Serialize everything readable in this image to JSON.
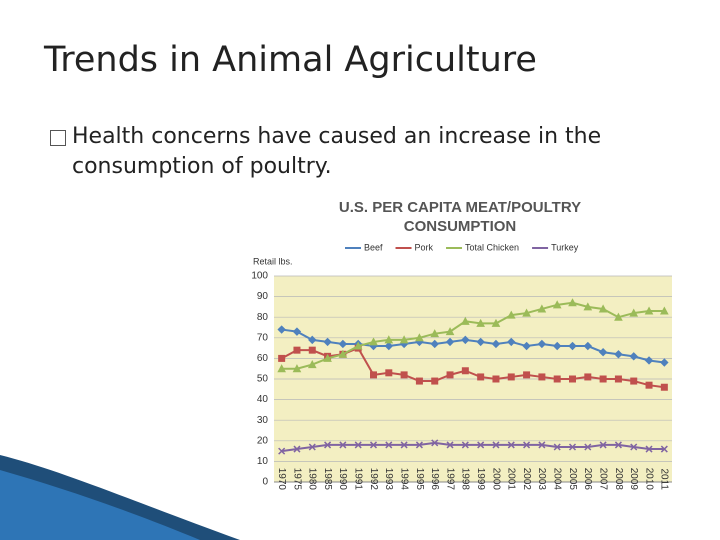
{
  "slide": {
    "title": "Trends in Animal Agriculture",
    "bullet": "Health concerns have caused an increase in the consumption of poultry."
  },
  "chart_data": {
    "type": "line",
    "title": "U.S. PER CAPITA MEAT/POULTRY CONSUMPTION",
    "y_label": "Retail lbs.",
    "categories": [
      "1970",
      "1975",
      "1980",
      "1985",
      "1990",
      "1991",
      "1992",
      "1993",
      "1994",
      "1995",
      "1996",
      "1997",
      "1998",
      "1999",
      "2000",
      "2001",
      "2002",
      "2003",
      "2004",
      "2005",
      "2006",
      "2007",
      "2008",
      "2009",
      "2010",
      "2011"
    ],
    "series": [
      {
        "name": "Beef",
        "color": "#4f81bd",
        "values": [
          74,
          73,
          69,
          68,
          67,
          67,
          66,
          66,
          67,
          68,
          67,
          68,
          69,
          68,
          67,
          68,
          66,
          67,
          66,
          66,
          66,
          63,
          62,
          61,
          59,
          58
        ]
      },
      {
        "name": "Pork",
        "color": "#c0504d",
        "values": [
          60,
          64,
          64,
          61,
          62,
          65,
          52,
          53,
          52,
          49,
          49,
          52,
          54,
          51,
          50,
          51,
          52,
          51,
          50,
          50,
          51,
          50,
          50,
          49,
          47,
          46
        ]
      },
      {
        "name": "Total Chicken",
        "color": "#9bbb59",
        "values": [
          55,
          55,
          57,
          60,
          62,
          66,
          68,
          69,
          69,
          70,
          72,
          73,
          78,
          77,
          77,
          81,
          82,
          84,
          86,
          87,
          85,
          84,
          80,
          82,
          83,
          83
        ]
      },
      {
        "name": "Turkey",
        "color": "#8064a2",
        "values": [
          15,
          16,
          17,
          18,
          18,
          18,
          18,
          18,
          18,
          18,
          19,
          18,
          18,
          18,
          18,
          18,
          18,
          18,
          17,
          17,
          17,
          18,
          18,
          17,
          16,
          16
        ]
      }
    ],
    "ylim": [
      0,
      100
    ],
    "yticks": [
      0,
      10,
      20,
      30,
      40,
      50,
      60,
      70,
      80,
      90,
      100
    ],
    "grid": true,
    "legend": "top"
  }
}
